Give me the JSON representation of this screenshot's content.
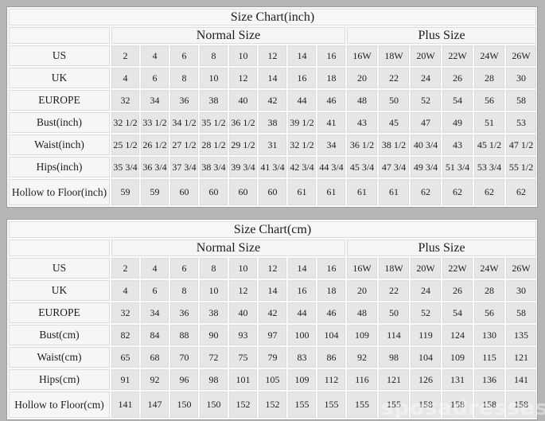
{
  "watermark": "sposadresses",
  "colors": {
    "page_background": "#b5b5b5",
    "table_background": "#fbfbfb",
    "value_cell_background": "#e6e6e6",
    "label_cell_background": "#f6f6f6",
    "text": "#1c1c1c"
  },
  "chart_data": [
    {
      "type": "table",
      "title": "Size Chart(inch)",
      "group_headers": {
        "normal": "Normal Size",
        "plus": "Plus Size"
      },
      "normal_span": 8,
      "plus_span": 6,
      "rows": [
        {
          "label": "US",
          "values": [
            "2",
            "4",
            "6",
            "8",
            "10",
            "12",
            "14",
            "16",
            "16W",
            "18W",
            "20W",
            "22W",
            "24W",
            "26W"
          ]
        },
        {
          "label": "UK",
          "values": [
            "4",
            "6",
            "8",
            "10",
            "12",
            "14",
            "16",
            "18",
            "20",
            "22",
            "24",
            "26",
            "28",
            "30"
          ]
        },
        {
          "label": "EUROPE",
          "values": [
            "32",
            "34",
            "36",
            "38",
            "40",
            "42",
            "44",
            "46",
            "48",
            "50",
            "52",
            "54",
            "56",
            "58"
          ]
        },
        {
          "label": "Bust(inch)",
          "values": [
            "32 1/2",
            "33 1/2",
            "34 1/2",
            "35 1/2",
            "36 1/2",
            "38",
            "39 1/2",
            "41",
            "43",
            "45",
            "47",
            "49",
            "51",
            "53"
          ]
        },
        {
          "label": "Waist(inch)",
          "values": [
            "25 1/2",
            "26 1/2",
            "27 1/2",
            "28 1/2",
            "29 1/2",
            "31",
            "32 1/2",
            "34",
            "36 1/2",
            "38 1/2",
            "40 3/4",
            "43",
            "45 1/2",
            "47 1/2"
          ]
        },
        {
          "label": "Hips(inch)",
          "values": [
            "35 3/4",
            "36 3/4",
            "37 3/4",
            "38 3/4",
            "39 3/4",
            "41 3/4",
            "42 3/4",
            "44 3/4",
            "45 3/4",
            "47 3/4",
            "49 3/4",
            "51 3/4",
            "53 3/4",
            "55 1/2"
          ]
        },
        {
          "label": "Hollow to Floor(inch)",
          "values": [
            "59",
            "59",
            "60",
            "60",
            "60",
            "60",
            "61",
            "61",
            "61",
            "61",
            "62",
            "62",
            "62",
            "62"
          ]
        }
      ]
    },
    {
      "type": "table",
      "title": "Size Chart(cm)",
      "group_headers": {
        "normal": "Normal Size",
        "plus": "Plus Size"
      },
      "normal_span": 8,
      "plus_span": 6,
      "rows": [
        {
          "label": "US",
          "values": [
            "2",
            "4",
            "6",
            "8",
            "10",
            "12",
            "14",
            "16",
            "16W",
            "18W",
            "20W",
            "22W",
            "24W",
            "26W"
          ]
        },
        {
          "label": "UK",
          "values": [
            "4",
            "6",
            "8",
            "10",
            "12",
            "14",
            "16",
            "18",
            "20",
            "22",
            "24",
            "26",
            "28",
            "30"
          ]
        },
        {
          "label": "EUROPE",
          "values": [
            "32",
            "34",
            "36",
            "38",
            "40",
            "42",
            "44",
            "46",
            "48",
            "50",
            "52",
            "54",
            "56",
            "58"
          ]
        },
        {
          "label": "Bust(cm)",
          "values": [
            "82",
            "84",
            "88",
            "90",
            "93",
            "97",
            "100",
            "104",
            "109",
            "114",
            "119",
            "124",
            "130",
            "135"
          ]
        },
        {
          "label": "Waist(cm)",
          "values": [
            "65",
            "68",
            "70",
            "72",
            "75",
            "79",
            "83",
            "86",
            "92",
            "98",
            "104",
            "109",
            "115",
            "121"
          ]
        },
        {
          "label": "Hips(cm)",
          "values": [
            "91",
            "92",
            "96",
            "98",
            "101",
            "105",
            "109",
            "112",
            "116",
            "121",
            "126",
            "131",
            "136",
            "141"
          ]
        },
        {
          "label": "Hollow to Floor(cm)",
          "values": [
            "141",
            "147",
            "150",
            "150",
            "152",
            "152",
            "155",
            "155",
            "155",
            "155",
            "158",
            "158",
            "158",
            "158"
          ]
        }
      ]
    }
  ]
}
